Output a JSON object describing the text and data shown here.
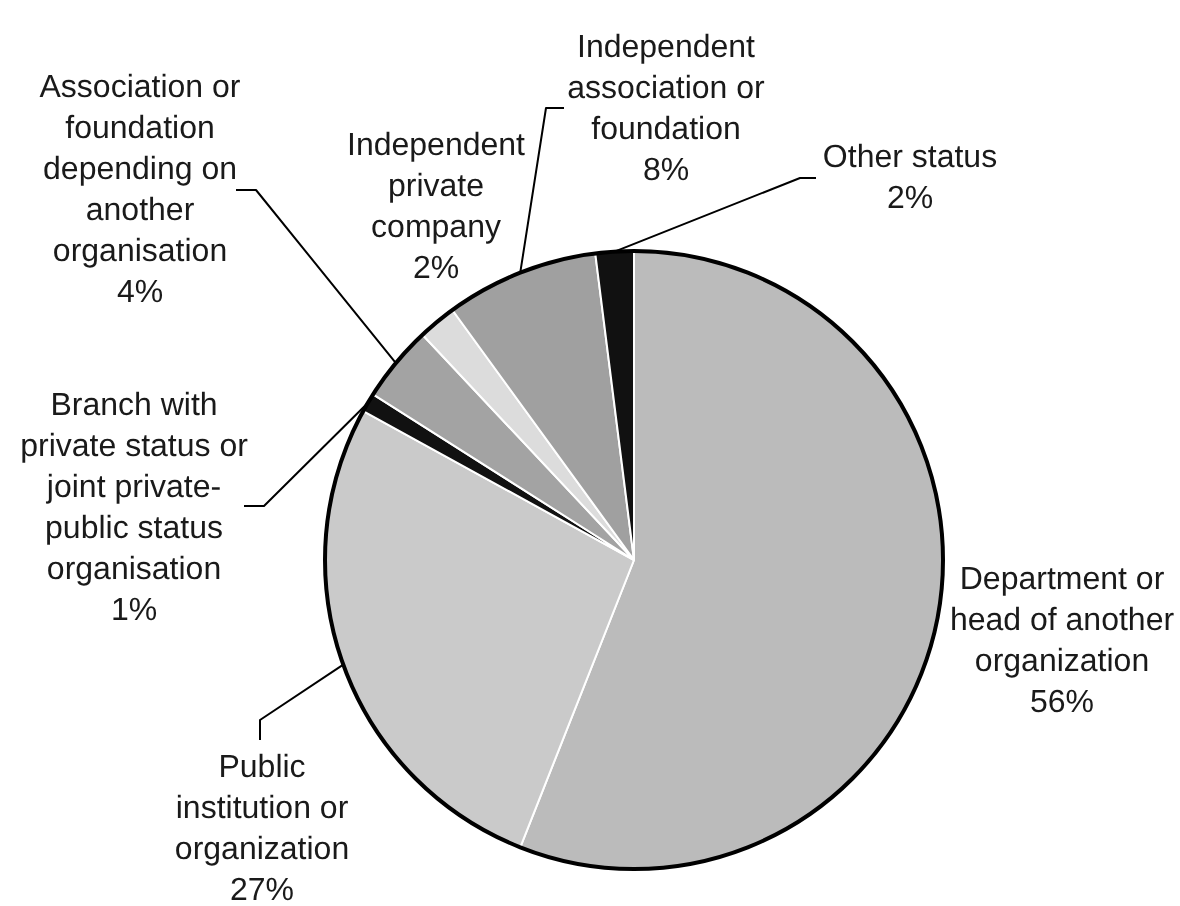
{
  "chart_data": {
    "type": "pie",
    "categories": [
      "Department or head of another organization",
      "Public institution or organization",
      "Branch with private status or joint private-public status organisation",
      "Association or foundation depending on another organisation",
      "Independent private company",
      "Independent association or foundation",
      "Other status"
    ],
    "values": [
      56,
      27,
      1,
      4,
      2,
      8,
      2
    ],
    "colors": [
      "#bbbbbb",
      "#cacaca",
      "#111111",
      "#a3a3a3",
      "#dcdcdc",
      "#a0a0a0",
      "#111111"
    ],
    "value_labels": [
      "56%",
      "27%",
      "1%",
      "4%",
      "2%",
      "8%",
      "2%"
    ],
    "legend": false
  }
}
